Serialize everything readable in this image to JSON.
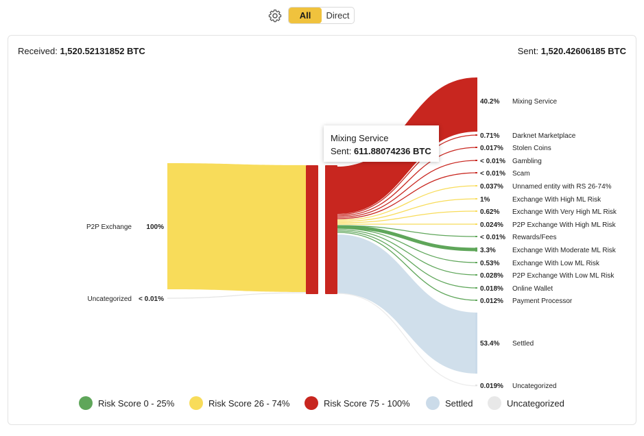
{
  "toolbar": {
    "all_label": "All",
    "direct_label": "Direct",
    "settings_icon": "gear-icon"
  },
  "header": {
    "received_label": "Received:",
    "received_value": "1,520.52131852 BTC",
    "sent_label": "Sent:",
    "sent_value": "1,520.42606185 BTC"
  },
  "tooltip": {
    "title": "Mixing Service",
    "sent_label": "Sent:",
    "sent_value": "611.88074236 BTC"
  },
  "colors": {
    "high": "#c8261f",
    "medium": "#f8dc5a",
    "low": "#5fa65a",
    "settled": "#cbdbe9",
    "uncategorized": "#e8e8e8"
  },
  "chart_data": {
    "type": "sankey",
    "sources": [
      {
        "name": "P2P Exchange",
        "pct": "100%",
        "risk": "medium"
      },
      {
        "name": "Uncategorized",
        "pct": "< 0.01%",
        "risk": "uncategorized"
      }
    ],
    "targets": [
      {
        "name": "Mixing Service",
        "pct": "40.2%",
        "risk": "high"
      },
      {
        "name": "Darknet Marketplace",
        "pct": "0.71%",
        "risk": "high"
      },
      {
        "name": "Stolen Coins",
        "pct": "0.017%",
        "risk": "high"
      },
      {
        "name": "Gambling",
        "pct": "< 0.01%",
        "risk": "high"
      },
      {
        "name": "Scam",
        "pct": "< 0.01%",
        "risk": "high"
      },
      {
        "name": "Unnamed entity with RS 26-74%",
        "pct": "0.037%",
        "risk": "medium"
      },
      {
        "name": "Exchange With High ML Risk",
        "pct": "1%",
        "risk": "medium"
      },
      {
        "name": "Exchange With Very High ML Risk",
        "pct": "0.62%",
        "risk": "medium"
      },
      {
        "name": "P2P Exchange With High ML Risk",
        "pct": "0.024%",
        "risk": "medium"
      },
      {
        "name": "Rewards/Fees",
        "pct": "< 0.01%",
        "risk": "low"
      },
      {
        "name": "Exchange With Moderate ML Risk",
        "pct": "3.3%",
        "risk": "low"
      },
      {
        "name": "Exchange With Low ML Risk",
        "pct": "0.53%",
        "risk": "low"
      },
      {
        "name": "P2P Exchange With Low ML Risk",
        "pct": "0.028%",
        "risk": "low"
      },
      {
        "name": "Online Wallet",
        "pct": "0.018%",
        "risk": "low"
      },
      {
        "name": "Payment Processor",
        "pct": "0.012%",
        "risk": "low"
      },
      {
        "name": "Settled",
        "pct": "53.4%",
        "risk": "settled"
      },
      {
        "name": "Uncategorized",
        "pct": "0.019%",
        "risk": "uncategorized"
      }
    ],
    "legend": [
      {
        "label": "Risk Score 0 - 25%",
        "risk": "low"
      },
      {
        "label": "Risk Score 26 - 74%",
        "risk": "medium"
      },
      {
        "label": "Risk Score 75 - 100%",
        "risk": "high"
      },
      {
        "label": "Settled",
        "risk": "settled"
      },
      {
        "label": "Uncategorized",
        "risk": "uncategorized"
      }
    ]
  }
}
